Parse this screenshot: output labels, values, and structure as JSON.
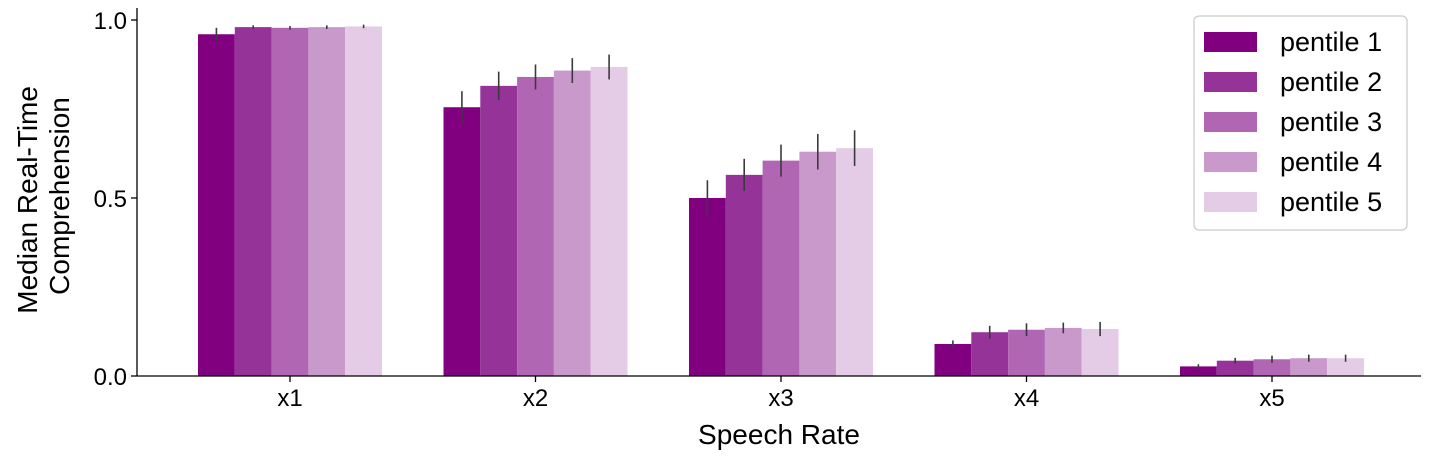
{
  "chart_data": {
    "type": "bar",
    "xlabel": "Speech Rate",
    "ylabel_lines": [
      "Median Real-Time",
      "Comprehension"
    ],
    "ylim": [
      0,
      1.0
    ],
    "yticks": [
      "0.0",
      "0.5",
      "1.0"
    ],
    "ytick_values": [
      0,
      0.5,
      1.0
    ],
    "categories": [
      "x1",
      "x2",
      "x3",
      "x4",
      "x5"
    ],
    "series": [
      {
        "name": "pentile 1",
        "color": "#800080",
        "values": [
          0.96,
          0.755,
          0.5,
          0.09,
          0.027
        ],
        "errors": [
          0.018,
          0.045,
          0.05,
          0.01,
          0.006
        ]
      },
      {
        "name": "pentile 2",
        "color": "#953399",
        "values": [
          0.98,
          0.815,
          0.565,
          0.123,
          0.043
        ],
        "errors": [
          0.005,
          0.04,
          0.045,
          0.018,
          0.008
        ]
      },
      {
        "name": "pentile 3",
        "color": "#b066b3",
        "values": [
          0.978,
          0.84,
          0.605,
          0.13,
          0.047
        ],
        "errors": [
          0.005,
          0.035,
          0.045,
          0.018,
          0.01
        ]
      },
      {
        "name": "pentile 4",
        "color": "#ca99cc",
        "values": [
          0.98,
          0.858,
          0.63,
          0.135,
          0.05
        ],
        "errors": [
          0.005,
          0.035,
          0.05,
          0.015,
          0.01
        ]
      },
      {
        "name": "pentile 5",
        "color": "#e4cce6",
        "values": [
          0.982,
          0.868,
          0.64,
          0.132,
          0.05
        ],
        "errors": [
          0.005,
          0.035,
          0.05,
          0.02,
          0.01
        ]
      }
    ],
    "legend_position": "top-right",
    "grid": false
  }
}
